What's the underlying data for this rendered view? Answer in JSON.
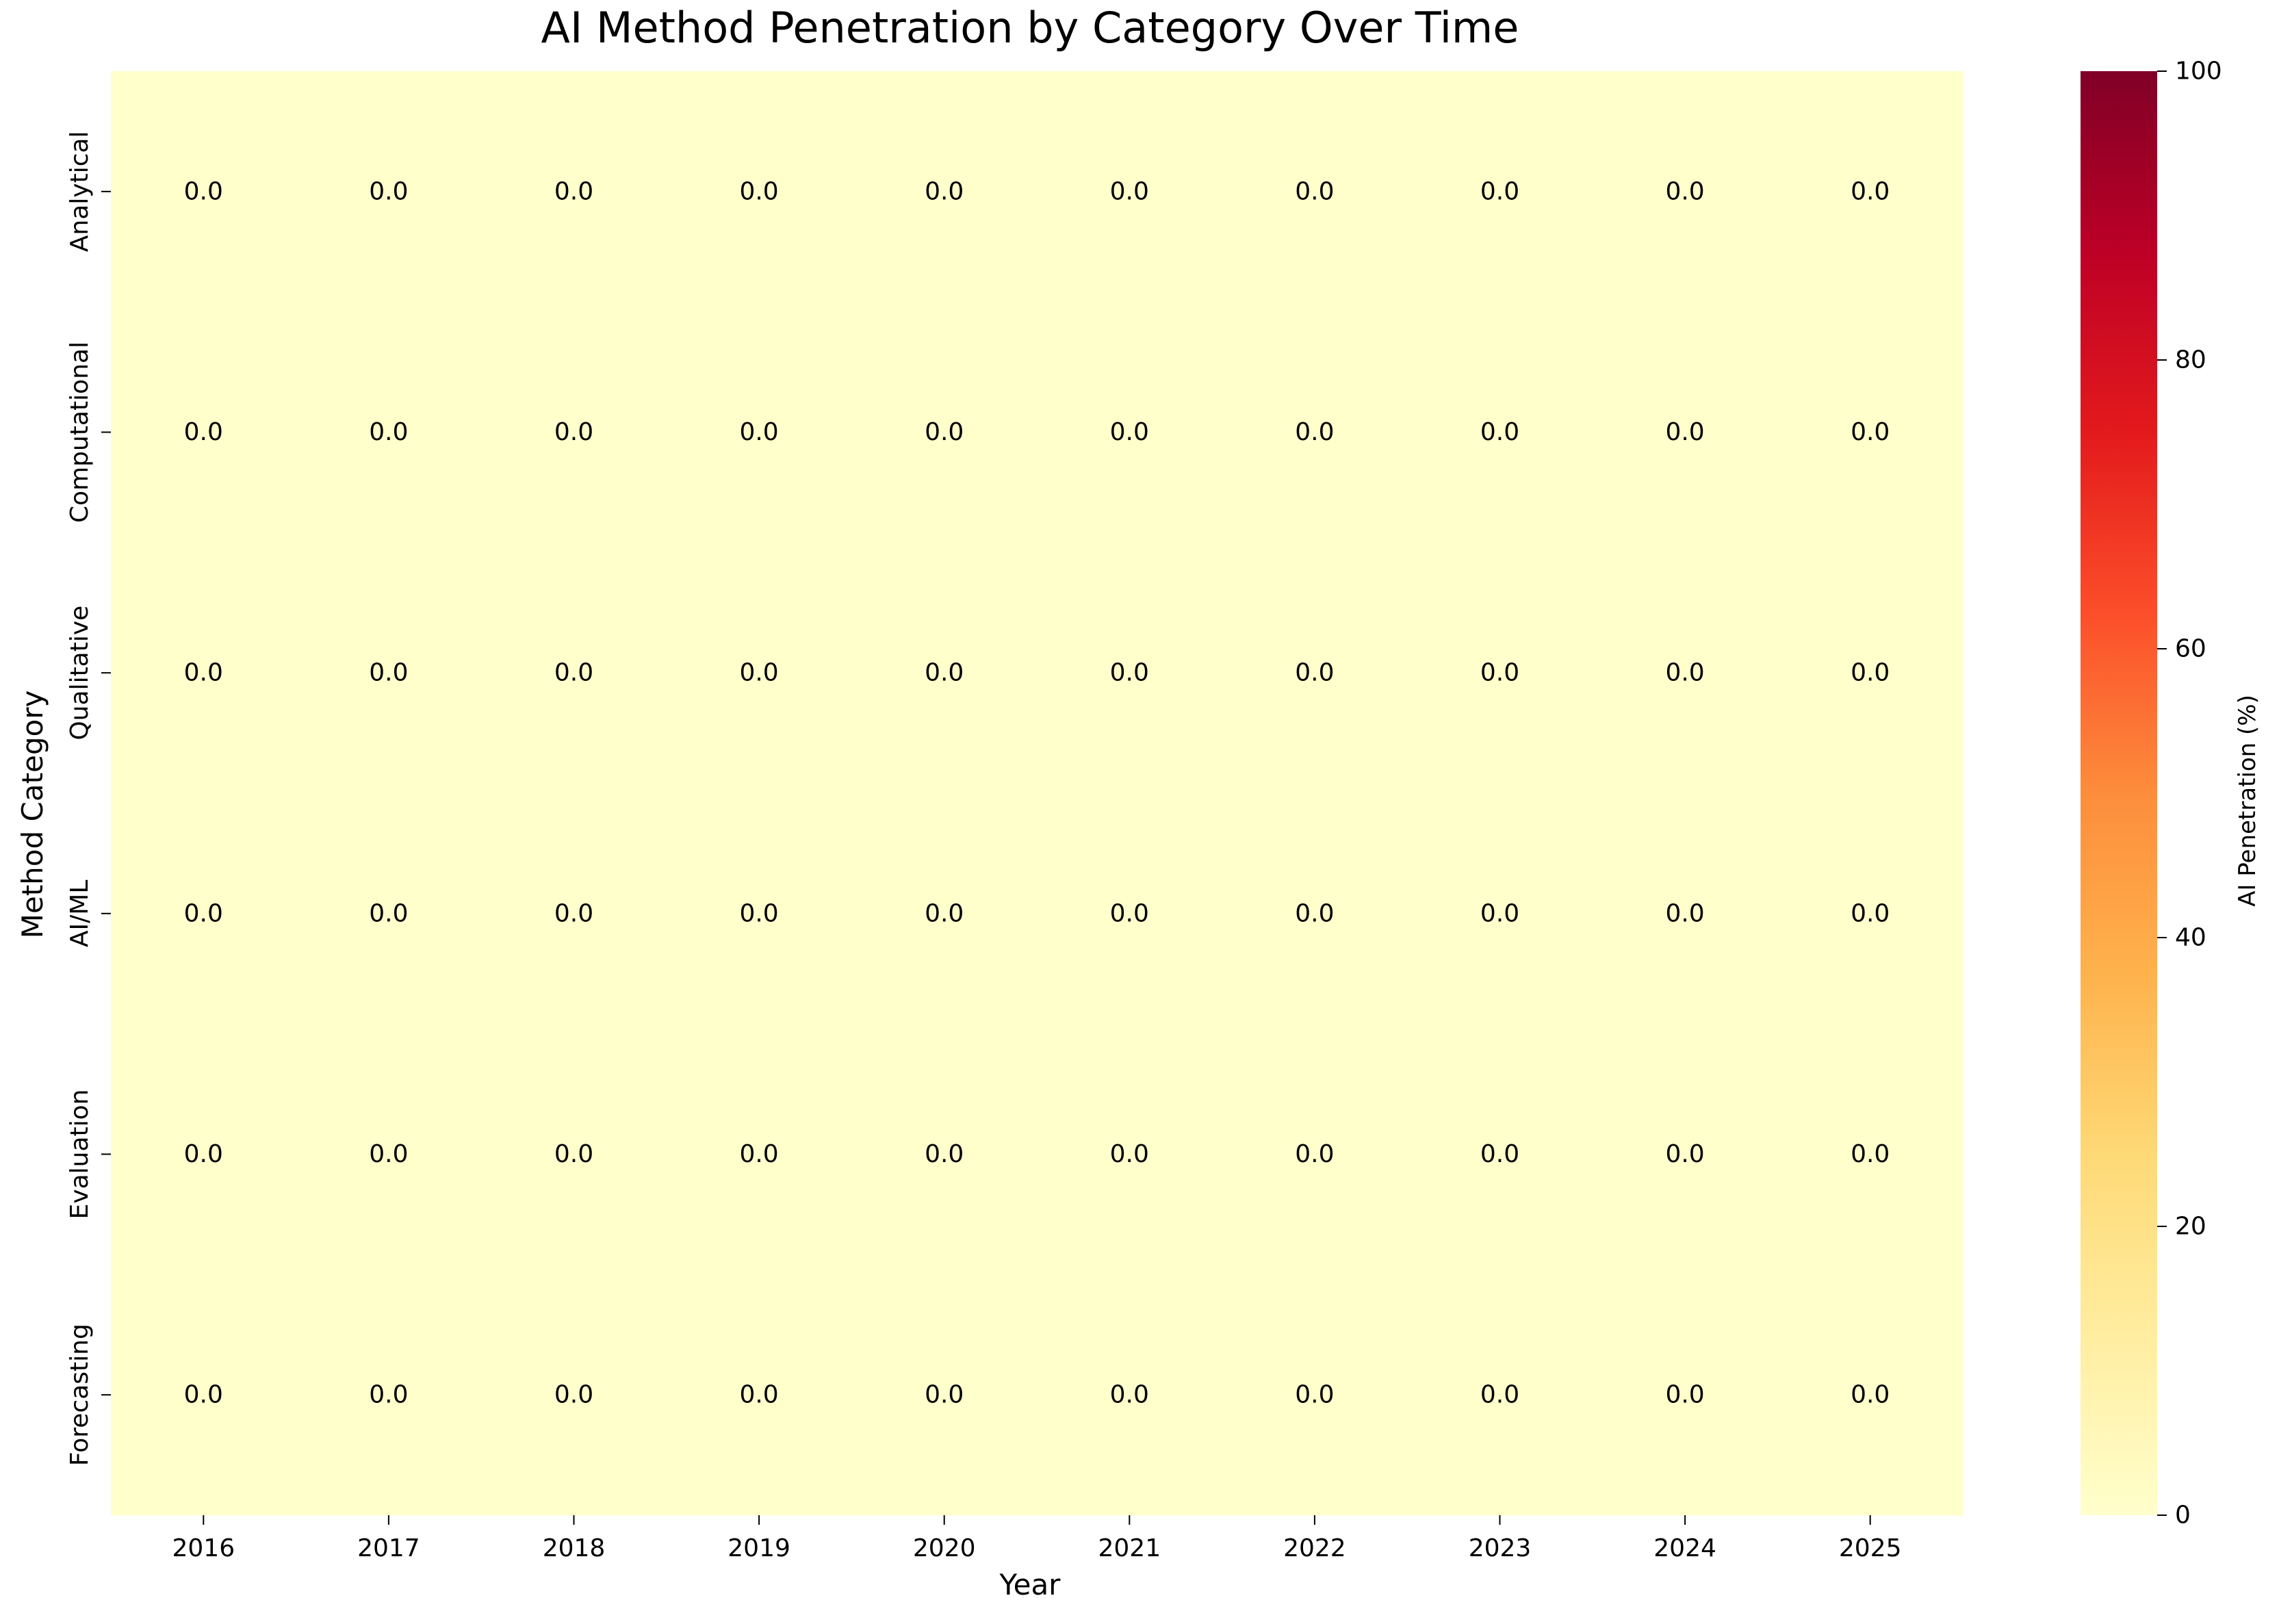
{
  "chart_data": {
    "type": "heatmap",
    "title": "AI Method Penetration by Category Over Time",
    "xlabel": "Year",
    "ylabel": "Method Category",
    "x_categories": [
      "2016",
      "2017",
      "2018",
      "2019",
      "2020",
      "2021",
      "2022",
      "2023",
      "2024",
      "2025"
    ],
    "y_categories": [
      "Analytical",
      "Computational",
      "Qualitative",
      "AI/ML",
      "Evaluation",
      "Forecasting"
    ],
    "values": [
      [
        0.0,
        0.0,
        0.0,
        0.0,
        0.0,
        0.0,
        0.0,
        0.0,
        0.0,
        0.0
      ],
      [
        0.0,
        0.0,
        0.0,
        0.0,
        0.0,
        0.0,
        0.0,
        0.0,
        0.0,
        0.0
      ],
      [
        0.0,
        0.0,
        0.0,
        0.0,
        0.0,
        0.0,
        0.0,
        0.0,
        0.0,
        0.0
      ],
      [
        0.0,
        0.0,
        0.0,
        0.0,
        0.0,
        0.0,
        0.0,
        0.0,
        0.0,
        0.0
      ],
      [
        0.0,
        0.0,
        0.0,
        0.0,
        0.0,
        0.0,
        0.0,
        0.0,
        0.0,
        0.0
      ],
      [
        0.0,
        0.0,
        0.0,
        0.0,
        0.0,
        0.0,
        0.0,
        0.0,
        0.0,
        0.0
      ]
    ],
    "annotation_format": "0.0",
    "colorbar": {
      "label": "AI Penetration (%)",
      "range": [
        0,
        100
      ],
      "ticks": [
        0,
        20,
        40,
        60,
        80,
        100
      ],
      "colormap": "YlOrRd",
      "color_stops": [
        "#ffffcc",
        "#ffeda0",
        "#fed976",
        "#feb24c",
        "#fd8d3c",
        "#fc4e2a",
        "#e31a1c",
        "#bd0026",
        "#800026"
      ]
    },
    "grid": false
  }
}
